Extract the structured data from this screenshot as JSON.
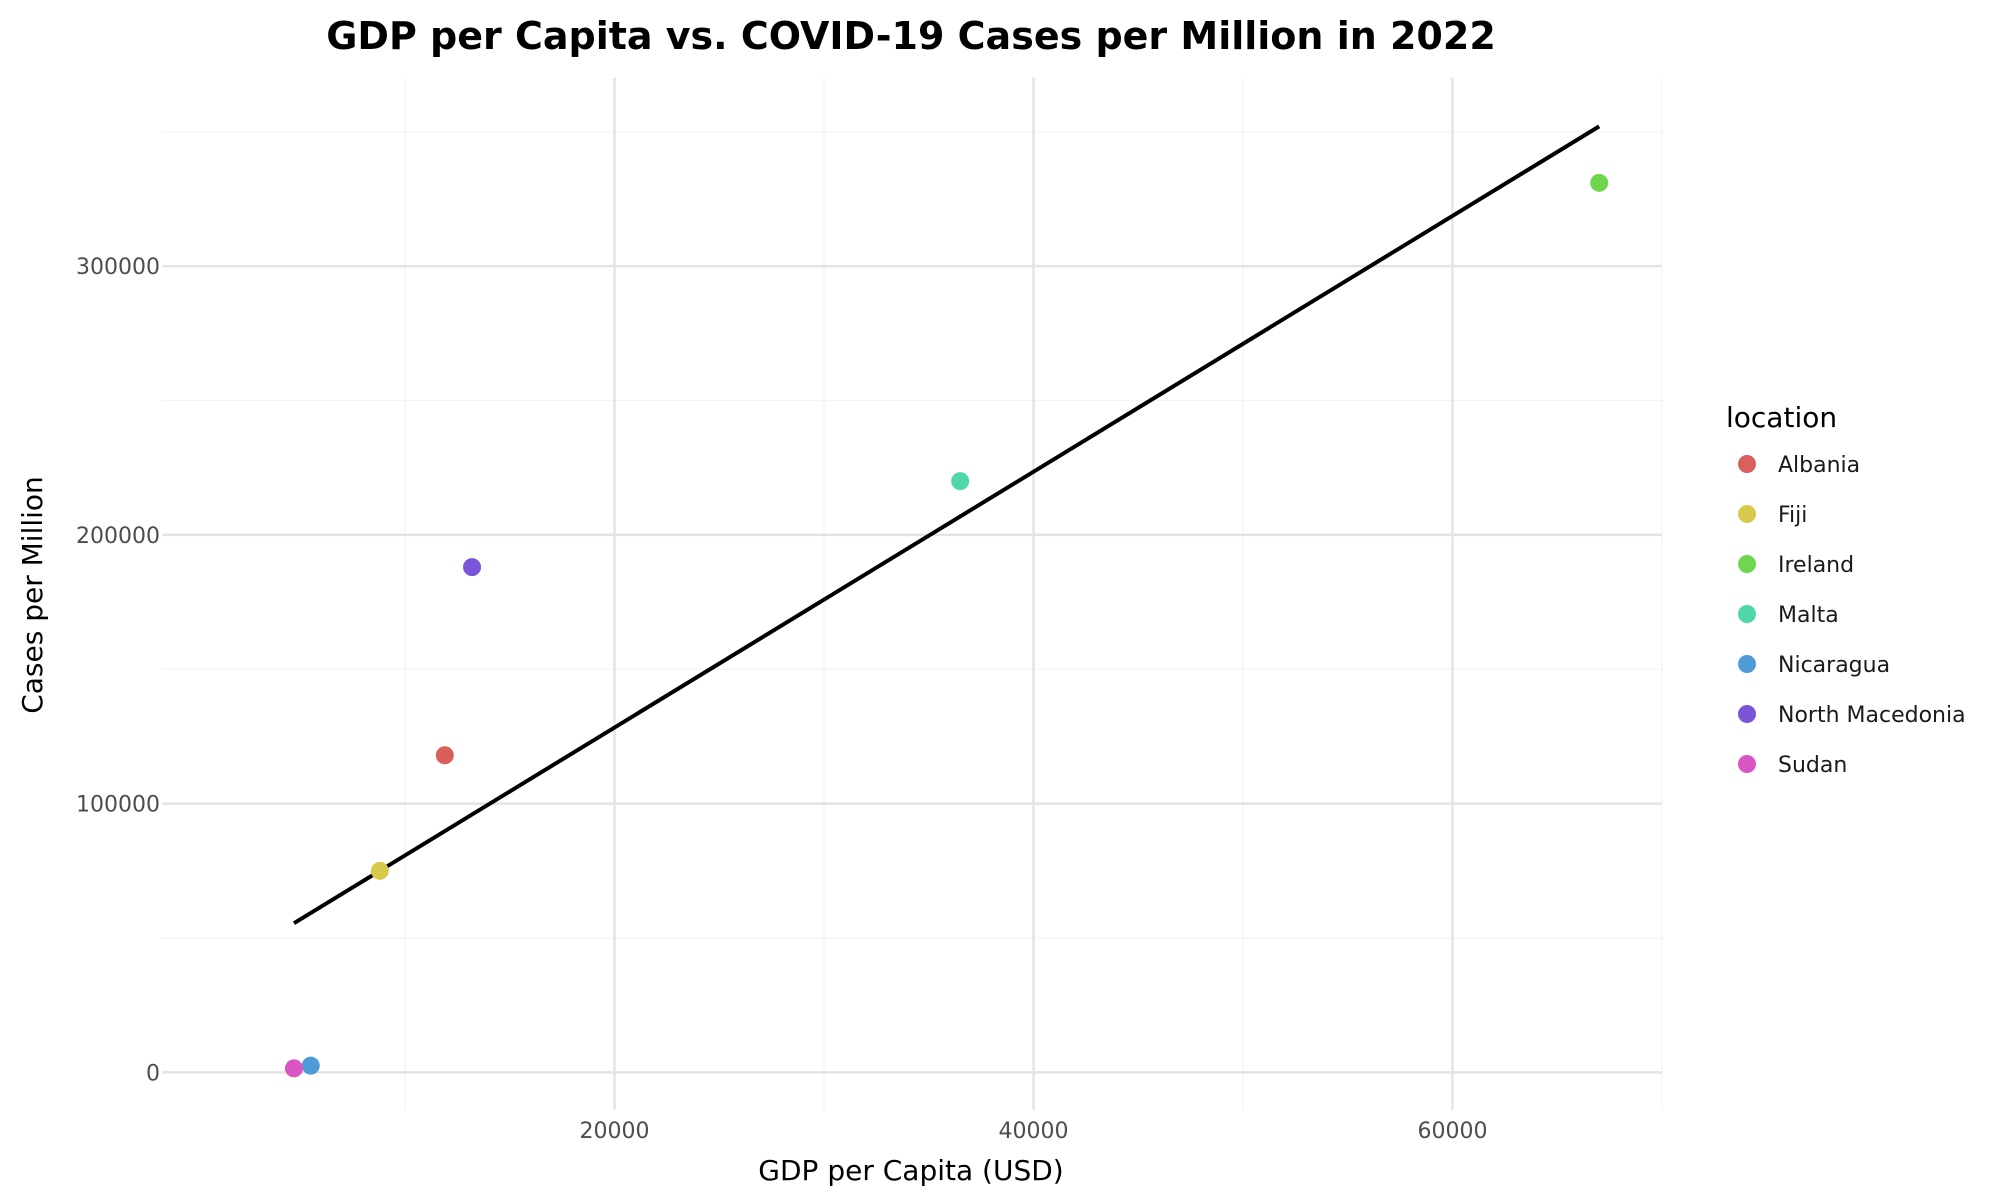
{
  "chart_data": {
    "type": "scatter",
    "title": "GDP per Capita vs. COVID-19 Cases per Million in 2022",
    "xlabel": "GDP per Capita (USD)",
    "ylabel": "Cases per Million",
    "xlim": [
      -1600,
      70000
    ],
    "ylim": [
      -14000,
      370000
    ],
    "x_ticks": [
      20000,
      40000,
      60000
    ],
    "x_tick_labels": [
      "20000",
      "40000",
      "60000"
    ],
    "y_ticks": [
      0,
      100000,
      200000,
      300000
    ],
    "y_tick_labels": [
      "0",
      "100000",
      "200000",
      "300000"
    ],
    "grid": true,
    "legend": {
      "title": "location",
      "placement": "right"
    },
    "points": [
      {
        "name": "Albania",
        "x": 11900,
        "y": 118000,
        "color": "#d9605a"
      },
      {
        "name": "Fiji",
        "x": 8800,
        "y": 75000,
        "color": "#d8c94a"
      },
      {
        "name": "Ireland",
        "x": 67000,
        "y": 331000,
        "color": "#6fd64e"
      },
      {
        "name": "Malta",
        "x": 36500,
        "y": 220000,
        "color": "#4fd8a6"
      },
      {
        "name": "Nicaragua",
        "x": 5500,
        "y": 2500,
        "color": "#4f9ad8"
      },
      {
        "name": "North Macedonia",
        "x": 13200,
        "y": 188000,
        "color": "#7b55d8"
      },
      {
        "name": "Sudan",
        "x": 4700,
        "y": 1500,
        "color": "#d855c3"
      }
    ],
    "trend_line": {
      "x": [
        4700,
        67000
      ],
      "y": [
        55500,
        352000
      ],
      "color": "#000000"
    }
  }
}
